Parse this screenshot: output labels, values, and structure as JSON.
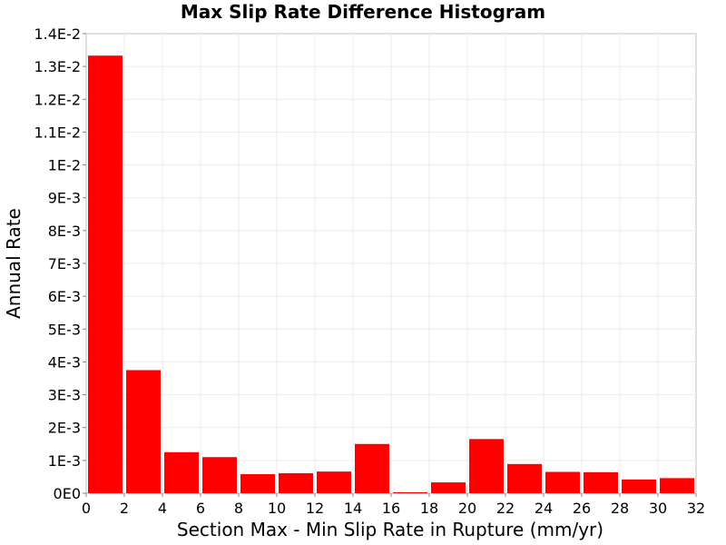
{
  "chart_data": {
    "type": "bar",
    "title": "Max Slip Rate Difference Histogram",
    "xlabel": "Section Max - Min Slip Rate in Rupture (mm/yr)",
    "ylabel": "Annual Rate",
    "xlim": [
      0,
      32
    ],
    "ylim": [
      0,
      0.014
    ],
    "bin_width": 2,
    "x_ticks": [
      0,
      2,
      4,
      6,
      8,
      10,
      12,
      14,
      16,
      18,
      20,
      22,
      24,
      26,
      28,
      30,
      32
    ],
    "x_tick_labels": [
      "0",
      "2",
      "4",
      "6",
      "8",
      "10",
      "12",
      "14",
      "16",
      "18",
      "20",
      "22",
      "24",
      "26",
      "28",
      "30",
      "32"
    ],
    "y_ticks": [
      0,
      0.001,
      0.002,
      0.003,
      0.004,
      0.005,
      0.006,
      0.007,
      0.008,
      0.009,
      0.01,
      0.011,
      0.012,
      0.013,
      0.014
    ],
    "y_tick_labels": [
      "0E0",
      "1E-3",
      "2E-3",
      "3E-3",
      "4E-3",
      "5E-3",
      "6E-3",
      "7E-3",
      "8E-3",
      "9E-3",
      "1E-2",
      "1.1E-2",
      "1.2E-2",
      "1.3E-2",
      "1.4E-2"
    ],
    "bin_centers": [
      1,
      3,
      5,
      7,
      9,
      11,
      13,
      15,
      17,
      19,
      21,
      23,
      25,
      27,
      29,
      31
    ],
    "values": [
      0.01333,
      0.00375,
      0.00125,
      0.0011,
      0.00058,
      0.00061,
      0.00066,
      0.0015,
      3e-05,
      0.00033,
      0.00165,
      0.00089,
      0.00065,
      0.00064,
      0.00042,
      0.00046
    ],
    "bar_color": "#ff0000",
    "grid": true
  }
}
